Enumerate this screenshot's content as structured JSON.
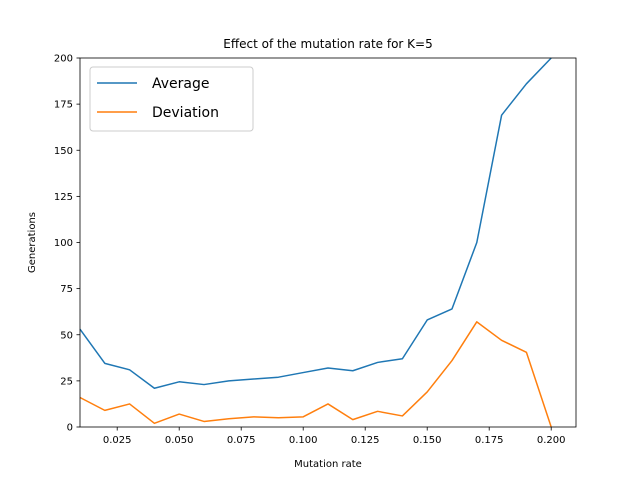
{
  "chart_data": {
    "type": "line",
    "title": "Effect of the mutation rate for K=5",
    "xlabel": "Mutation rate",
    "ylabel": "Generations",
    "xlim": [
      0.01,
      0.21
    ],
    "ylim": [
      0,
      200
    ],
    "x_ticks": [
      0.025,
      0.05,
      0.075,
      0.1,
      0.125,
      0.15,
      0.175,
      0.2
    ],
    "x_tick_labels": [
      "0.025",
      "0.050",
      "0.075",
      "0.100",
      "0.125",
      "0.150",
      "0.175",
      "0.200"
    ],
    "y_ticks": [
      0,
      25,
      50,
      75,
      100,
      125,
      150,
      175,
      200
    ],
    "y_tick_labels": [
      "0",
      "25",
      "50",
      "75",
      "100",
      "125",
      "150",
      "175",
      "200"
    ],
    "grid": false,
    "legend_position": "upper-left",
    "x": [
      0.01,
      0.02,
      0.03,
      0.04,
      0.05,
      0.06,
      0.07,
      0.08,
      0.09,
      0.1,
      0.11,
      0.12,
      0.13,
      0.14,
      0.15,
      0.16,
      0.17,
      0.18,
      0.19,
      0.2
    ],
    "series": [
      {
        "name": "Average",
        "color": "#1f77b4",
        "values": [
          53,
          34.5,
          31,
          21,
          24.5,
          23,
          25,
          26,
          27,
          29.5,
          32,
          30.5,
          35,
          37,
          58,
          64,
          100,
          169,
          186,
          200
        ]
      },
      {
        "name": "Deviation",
        "color": "#ff7f0e",
        "values": [
          16,
          9,
          12.5,
          2,
          7,
          3,
          4.5,
          5.5,
          5,
          5.5,
          12.5,
          4,
          8.5,
          6,
          19,
          36,
          57,
          47,
          40.5,
          0
        ]
      }
    ]
  }
}
